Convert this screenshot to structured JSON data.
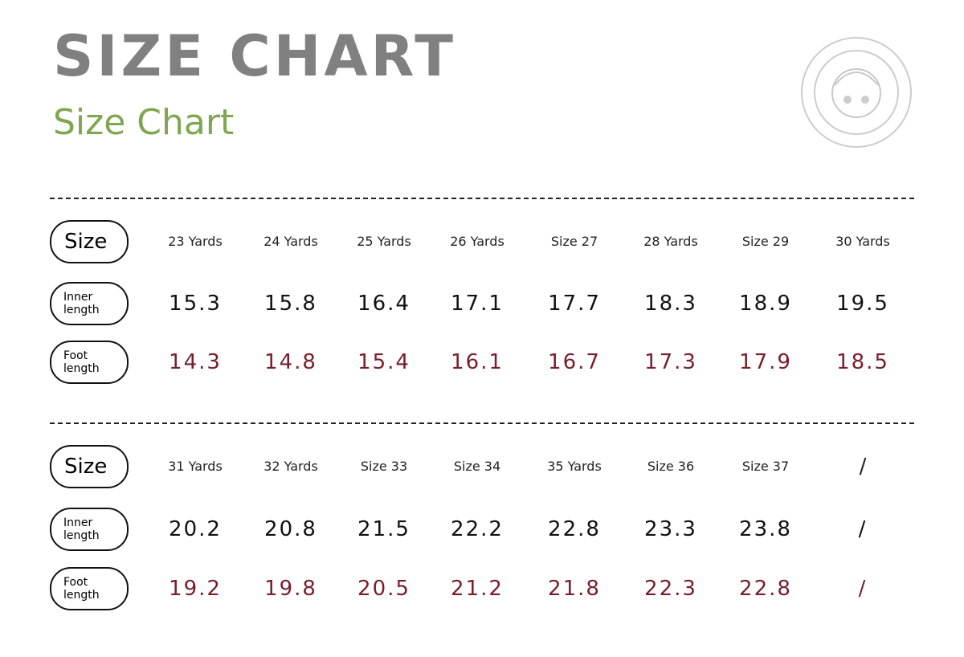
{
  "header": {
    "title": "SIZE CHART",
    "subtitle": "Size Chart"
  },
  "tables": [
    {
      "rows": [
        {
          "label": "Size",
          "cells": [
            "23 Yards",
            "24 Yards",
            "25 Yards",
            "26 Yards",
            "Size 27",
            "28 Yards",
            "Size 29",
            "30 Yards"
          ]
        },
        {
          "label": "Inner length",
          "cells": [
            15.3,
            15.8,
            16.4,
            17.1,
            17.7,
            18.3,
            18.9,
            19.5
          ]
        },
        {
          "label": "Foot length",
          "cells": [
            14.3,
            14.8,
            15.4,
            16.1,
            16.7,
            17.3,
            17.9,
            18.5
          ]
        }
      ]
    },
    {
      "rows": [
        {
          "label": "Size",
          "cells": [
            "31 Yards",
            "32 Yards",
            "Size 33",
            "Size 34",
            "35 Yards",
            "Size 36",
            "Size 37",
            "/"
          ]
        },
        {
          "label": "Inner length",
          "cells": [
            20.2,
            20.8,
            21.5,
            22.2,
            22.8,
            23.3,
            23.8,
            "/"
          ]
        },
        {
          "label": "Foot length",
          "cells": [
            19.2,
            19.8,
            20.5,
            21.2,
            21.8,
            22.3,
            22.8,
            "/"
          ]
        }
      ]
    }
  ]
}
